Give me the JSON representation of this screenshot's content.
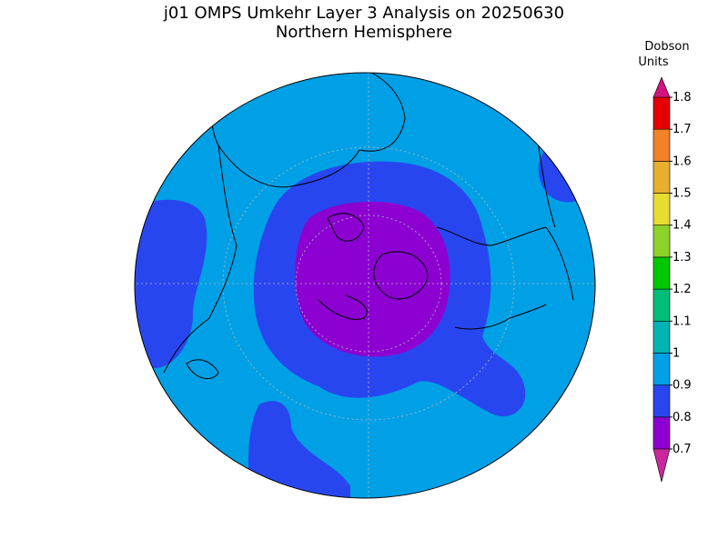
{
  "title": "j01 OMPS Umkehr Layer 3 Analysis on 20250630",
  "subtitle": "Northern Hemisphere",
  "map": {
    "projection": "polar stereographic",
    "background_level": 2
  },
  "colorbar": {
    "label": [
      "Dobson",
      "Units"
    ],
    "levels": [
      0.7,
      0.8,
      0.9,
      1,
      1.1,
      1.2,
      1.3,
      1.4,
      1.5,
      1.6,
      1.7,
      1.8
    ],
    "colors": [
      "#8c00d2",
      "#2846f0",
      "#00a0e6",
      "#00b4b4",
      "#00be78",
      "#00c800",
      "#8cd228",
      "#e6dc32",
      "#e6af2d",
      "#f08228",
      "#e60000"
    ],
    "under_color": "#c8289c",
    "over_color": "#d2147f"
  }
}
